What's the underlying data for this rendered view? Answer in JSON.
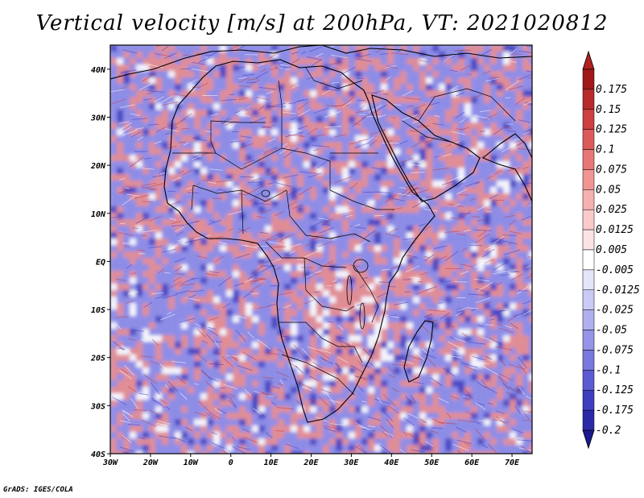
{
  "title": "Vertical velocity [m/s] at 200hPa, VT: 2021020812",
  "credit": "GrADS: IGES/COLA",
  "map": {
    "lon_range": [
      -30,
      75
    ],
    "lat_range": [
      -40,
      45
    ],
    "lon_ticks": [
      {
        "value": -30,
        "label": "30W"
      },
      {
        "value": -20,
        "label": "20W"
      },
      {
        "value": -10,
        "label": "10W"
      },
      {
        "value": 0,
        "label": "0"
      },
      {
        "value": 10,
        "label": "10E"
      },
      {
        "value": 20,
        "label": "20E"
      },
      {
        "value": 30,
        "label": "30E"
      },
      {
        "value": 40,
        "label": "40E"
      },
      {
        "value": 50,
        "label": "50E"
      },
      {
        "value": 60,
        "label": "60E"
      },
      {
        "value": 70,
        "label": "70E"
      }
    ],
    "lat_ticks": [
      {
        "value": 40,
        "label": "40N"
      },
      {
        "value": 30,
        "label": "30N"
      },
      {
        "value": 20,
        "label": "20N"
      },
      {
        "value": 10,
        "label": "10N"
      },
      {
        "value": 0,
        "label": "EQ"
      },
      {
        "value": -10,
        "label": "10S"
      },
      {
        "value": -20,
        "label": "20S"
      },
      {
        "value": -30,
        "label": "30S"
      },
      {
        "value": -40,
        "label": "40S"
      }
    ]
  },
  "colorbar": {
    "levels": [
      {
        "label": "0.175",
        "color": "#a01818"
      },
      {
        "label": "0.15",
        "color": "#b92a2a"
      },
      {
        "label": "0.125",
        "color": "#cc4040"
      },
      {
        "label": "0.1",
        "color": "#dc5a5a"
      },
      {
        "label": "0.075",
        "color": "#e87676"
      },
      {
        "label": "0.05",
        "color": "#f09494"
      },
      {
        "label": "0.025",
        "color": "#f6b0b0"
      },
      {
        "label": "0.0125",
        "color": "#facaca"
      },
      {
        "label": "0.005",
        "color": "#fde4e4"
      },
      {
        "label": "-0.005",
        "color": "#ffffff"
      },
      {
        "label": "-0.0125",
        "color": "#e4e4fb"
      },
      {
        "label": "-0.025",
        "color": "#cacaf6"
      },
      {
        "label": "-0.05",
        "color": "#b0b0f0"
      },
      {
        "label": "-0.075",
        "color": "#9494e8"
      },
      {
        "label": "-0.1",
        "color": "#7878de"
      },
      {
        "label": "-0.125",
        "color": "#5c5cd2"
      },
      {
        "label": "-0.175",
        "color": "#3e3ec0"
      },
      {
        "label": "-0.2",
        "color": "#2a2aa8"
      }
    ],
    "top_color": "#b02020",
    "bottom_color": "#1c1890"
  },
  "field_palette": {
    "red": "#e88a8a",
    "red_dark": "#c63a3a",
    "blue": "#8a8ae6",
    "blue_dark": "#3c3cc0",
    "ocean_base": "#a9a9ee",
    "land_base": "#b7b7f0"
  }
}
